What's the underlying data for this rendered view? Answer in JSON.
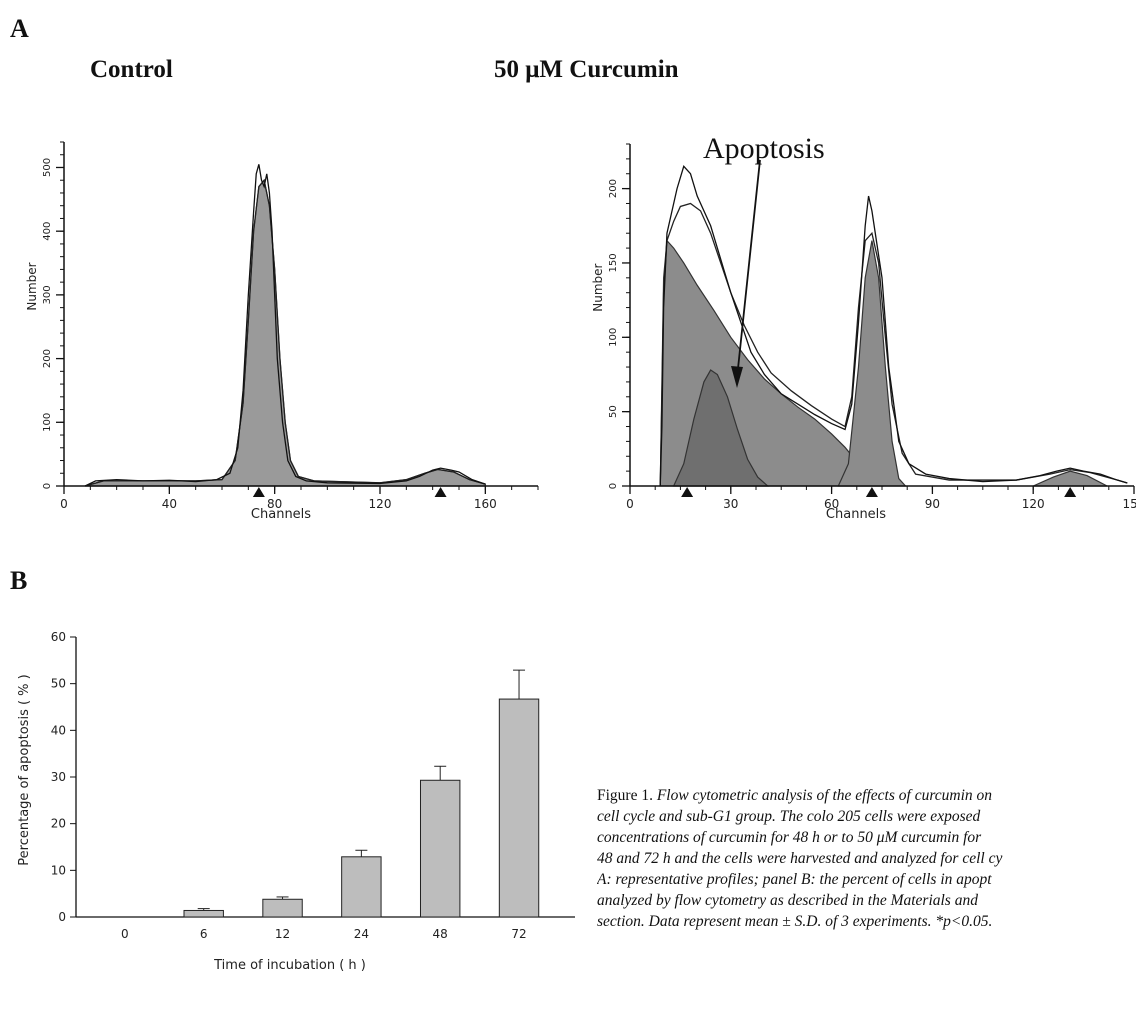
{
  "panel_a_label": "A",
  "panel_b_label": "B",
  "control_title": "Control",
  "curcumin_title": "50 μM Curcumin",
  "apoptosis_annotation": "Apoptosis",
  "caption": {
    "label": "Figure 1.",
    "line1": "Flow cytometric analysis of the effects of curcumin on",
    "line2": "cell cycle and sub-G1 group. The colo 205 cells were exposed",
    "line3": "concentrations of curcumin for 48 h or to 50 μM curcumin for",
    "line4": "48 and 72 h and the cells were harvested and analyzed for cell cy",
    "line5": "A: representative profiles; panel B: the percent of cells in apopt",
    "line6": "analyzed by flow cytometry as described in the Materials and",
    "line7": "section. Data represent mean ± S.D. of 3 experiments. *p<0.05."
  },
  "chart_data": [
    {
      "type": "area",
      "panel": "A-control",
      "title": "Control",
      "xlabel": "Channels",
      "ylabel": "Number",
      "xlim": [
        0,
        180
      ],
      "ylim": [
        0,
        540
      ],
      "xticks": [
        0,
        40,
        80,
        120,
        160
      ],
      "yticks": [
        0,
        100,
        200,
        300,
        400,
        500
      ],
      "markers": [
        74,
        143
      ],
      "histogram": [
        [
          8,
          0
        ],
        [
          12,
          8
        ],
        [
          20,
          10
        ],
        [
          30,
          8
        ],
        [
          40,
          9
        ],
        [
          50,
          7
        ],
        [
          58,
          10
        ],
        [
          63,
          20
        ],
        [
          66,
          60
        ],
        [
          68,
          150
        ],
        [
          70,
          300
        ],
        [
          72,
          430
        ],
        [
          73,
          490
        ],
        [
          74,
          505
        ],
        [
          75,
          480
        ],
        [
          76,
          470
        ],
        [
          77,
          490
        ],
        [
          78,
          460
        ],
        [
          79,
          400
        ],
        [
          80,
          300
        ],
        [
          81,
          200
        ],
        [
          83,
          100
        ],
        [
          85,
          40
        ],
        [
          88,
          15
        ],
        [
          92,
          8
        ],
        [
          100,
          5
        ],
        [
          120,
          4
        ],
        [
          130,
          8
        ],
        [
          135,
          15
        ],
        [
          140,
          25
        ],
        [
          143,
          28
        ],
        [
          147,
          25
        ],
        [
          150,
          22
        ],
        [
          155,
          10
        ],
        [
          160,
          3
        ]
      ],
      "fit": [
        [
          8,
          0
        ],
        [
          15,
          8
        ],
        [
          30,
          8
        ],
        [
          50,
          8
        ],
        [
          60,
          10
        ],
        [
          65,
          40
        ],
        [
          68,
          130
        ],
        [
          70,
          260
        ],
        [
          72,
          400
        ],
        [
          74,
          470
        ],
        [
          76,
          480
        ],
        [
          78,
          440
        ],
        [
          80,
          340
        ],
        [
          82,
          200
        ],
        [
          84,
          100
        ],
        [
          86,
          40
        ],
        [
          89,
          15
        ],
        [
          95,
          8
        ],
        [
          120,
          5
        ],
        [
          130,
          10
        ],
        [
          137,
          20
        ],
        [
          142,
          26
        ],
        [
          148,
          22
        ],
        [
          154,
          10
        ],
        [
          160,
          3
        ]
      ]
    },
    {
      "type": "area",
      "panel": "A-curcumin",
      "title": "50 μM Curcumin",
      "xlabel": "Channels",
      "ylabel": "Number",
      "xlim": [
        0,
        150
      ],
      "ylim": [
        0,
        230
      ],
      "xticks": [
        0,
        30,
        60,
        90,
        120,
        150
      ],
      "yticks": [
        0,
        50,
        100,
        150,
        200
      ],
      "markers": [
        17,
        72,
        131
      ],
      "histogram": [
        [
          9,
          0
        ],
        [
          9.5,
          40
        ],
        [
          10,
          120
        ],
        [
          11,
          170
        ],
        [
          12,
          180
        ],
        [
          14,
          200
        ],
        [
          16,
          215
        ],
        [
          18,
          210
        ],
        [
          20,
          195
        ],
        [
          22,
          185
        ],
        [
          24,
          175
        ],
        [
          26,
          160
        ],
        [
          28,
          145
        ],
        [
          30,
          130
        ],
        [
          33,
          110
        ],
        [
          36,
          90
        ],
        [
          40,
          75
        ],
        [
          45,
          62
        ],
        [
          50,
          55
        ],
        [
          55,
          48
        ],
        [
          60,
          42
        ],
        [
          64,
          38
        ],
        [
          66,
          55
        ],
        [
          68,
          110
        ],
        [
          70,
          175
        ],
        [
          71,
          195
        ],
        [
          72,
          185
        ],
        [
          73,
          170
        ],
        [
          75,
          140
        ],
        [
          77,
          80
        ],
        [
          80,
          30
        ],
        [
          83,
          15
        ],
        [
          88,
          8
        ],
        [
          95,
          5
        ],
        [
          105,
          3
        ],
        [
          115,
          4
        ],
        [
          122,
          7
        ],
        [
          127,
          10
        ],
        [
          131,
          12
        ],
        [
          135,
          10
        ],
        [
          140,
          8
        ],
        [
          145,
          4
        ],
        [
          148,
          2
        ]
      ],
      "fit": [
        [
          9,
          0
        ],
        [
          9.5,
          60
        ],
        [
          10,
          130
        ],
        [
          11,
          165
        ],
        [
          13,
          178
        ],
        [
          15,
          188
        ],
        [
          18,
          190
        ],
        [
          21,
          185
        ],
        [
          24,
          170
        ],
        [
          27,
          150
        ],
        [
          30,
          130
        ],
        [
          34,
          108
        ],
        [
          38,
          90
        ],
        [
          42,
          76
        ],
        [
          48,
          64
        ],
        [
          54,
          54
        ],
        [
          60,
          45
        ],
        [
          64,
          40
        ],
        [
          66,
          60
        ],
        [
          68,
          120
        ],
        [
          70,
          165
        ],
        [
          72,
          170
        ],
        [
          74,
          150
        ],
        [
          76,
          100
        ],
        [
          78,
          55
        ],
        [
          81,
          22
        ],
        [
          85,
          8
        ],
        [
          95,
          4
        ],
        [
          115,
          4
        ],
        [
          125,
          8
        ],
        [
          131,
          11
        ],
        [
          137,
          9
        ],
        [
          145,
          4
        ],
        [
          148,
          2
        ]
      ],
      "g1_peak": [
        [
          9,
          0
        ],
        [
          10,
          140
        ],
        [
          11,
          165
        ],
        [
          13,
          160
        ],
        [
          16,
          150
        ],
        [
          20,
          135
        ],
        [
          25,
          118
        ],
        [
          30,
          100
        ],
        [
          35,
          85
        ],
        [
          40,
          72
        ],
        [
          45,
          62
        ],
        [
          50,
          53
        ],
        [
          55,
          45
        ],
        [
          60,
          35
        ],
        [
          64,
          26
        ],
        [
          68,
          15
        ],
        [
          72,
          5
        ],
        [
          75,
          0
        ]
      ],
      "subg1_peak": [
        [
          13,
          0
        ],
        [
          16,
          15
        ],
        [
          19,
          45
        ],
        [
          22,
          70
        ],
        [
          24,
          78
        ],
        [
          26,
          75
        ],
        [
          29,
          60
        ],
        [
          32,
          38
        ],
        [
          35,
          18
        ],
        [
          38,
          6
        ],
        [
          41,
          0
        ]
      ],
      "g2_peak": [
        [
          62,
          0
        ],
        [
          65,
          15
        ],
        [
          68,
          80
        ],
        [
          70,
          140
        ],
        [
          72,
          165
        ],
        [
          74,
          140
        ],
        [
          76,
          80
        ],
        [
          78,
          30
        ],
        [
          80,
          5
        ],
        [
          82,
          0
        ]
      ],
      "s_phase_peak": [
        [
          120,
          0
        ],
        [
          126,
          6
        ],
        [
          131,
          10
        ],
        [
          136,
          7
        ],
        [
          142,
          0
        ]
      ]
    },
    {
      "type": "bar",
      "panel": "B",
      "categories": [
        "0",
        "6",
        "12",
        "24",
        "48",
        "72"
      ],
      "values": [
        0,
        1.4,
        3.8,
        12.9,
        29.3,
        46.7
      ],
      "errors": [
        0,
        0.4,
        0.5,
        1.4,
        3.0,
        6.2
      ],
      "xlabel": "Time of incubation ( h )",
      "ylabel": "Percentage of apoptosis ( % )",
      "ylim": [
        0,
        60
      ],
      "yticks": [
        0,
        10,
        20,
        30,
        40,
        50,
        60
      ],
      "bar_color": "#bdbdbd"
    }
  ]
}
